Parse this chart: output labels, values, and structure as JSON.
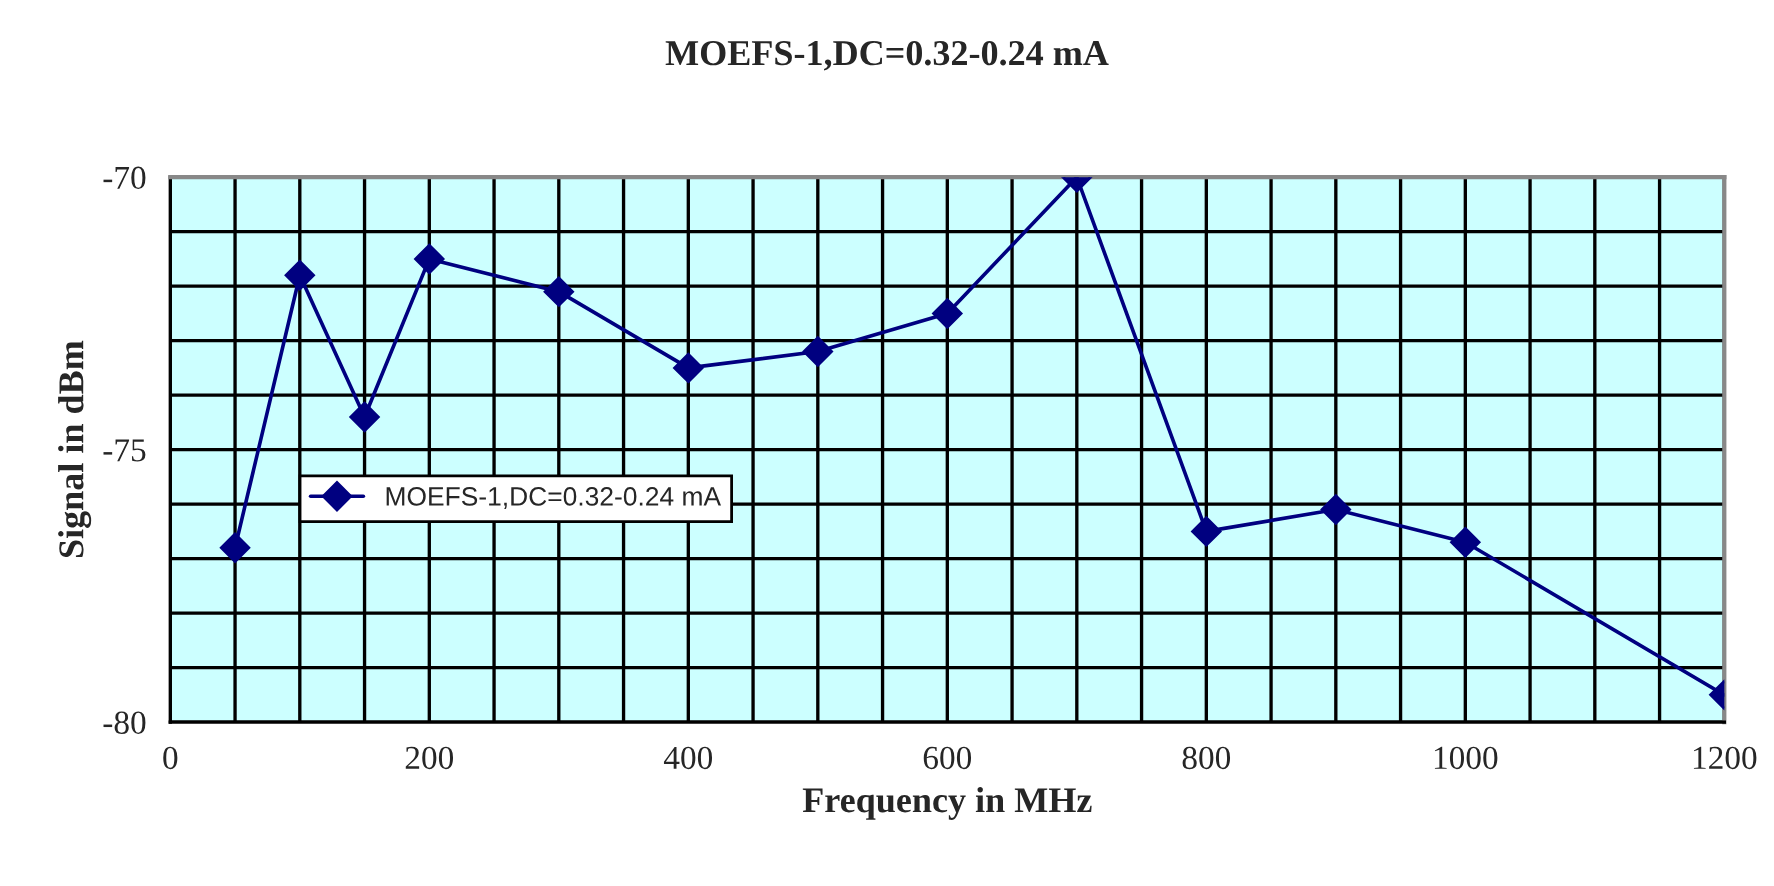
{
  "chart_data": {
    "type": "line",
    "title": "MOEFS-1,DC=0.32-0.24 mA",
    "xlabel": "Frequency in MHz",
    "ylabel": "Signal in dBm",
    "x": [
      50,
      100,
      150,
      200,
      300,
      400,
      500,
      600,
      700,
      800,
      900,
      1000,
      1200
    ],
    "series": [
      {
        "name": "MOEFS-1,DC=0.32-0.24 mA",
        "color": "#000080",
        "values": [
          -76.8,
          -71.8,
          -74.4,
          -71.5,
          -72.1,
          -73.5,
          -73.2,
          -72.5,
          -70.0,
          -76.5,
          -76.1,
          -76.7,
          -79.5
        ]
      }
    ],
    "xlim": [
      0,
      1200
    ],
    "ylim": [
      -80,
      -70
    ],
    "xticks": [
      0,
      {
        "value": 50,
        "label": null
      },
      {
        "value": 100,
        "label": null
      },
      {
        "value": 150,
        "label": null
      },
      200,
      {
        "value": 250,
        "label": null
      },
      {
        "value": 300,
        "label": null
      },
      {
        "value": 350,
        "label": null
      },
      400,
      {
        "value": 450,
        "label": null
      },
      {
        "value": 500,
        "label": null
      },
      {
        "value": 550,
        "label": null
      },
      600,
      {
        "value": 650,
        "label": null
      },
      {
        "value": 700,
        "label": null
      },
      {
        "value": 750,
        "label": null
      },
      800,
      {
        "value": 850,
        "label": null
      },
      {
        "value": 900,
        "label": null
      },
      {
        "value": 950,
        "label": null
      },
      1000,
      {
        "value": 1050,
        "label": null
      },
      {
        "value": 1100,
        "label": null
      },
      {
        "value": 1150,
        "label": null
      },
      1200
    ],
    "yticks": [
      -80,
      {
        "value": -79,
        "label": null
      },
      {
        "value": -78,
        "label": null
      },
      {
        "value": -77,
        "label": null
      },
      {
        "value": -76,
        "label": null
      },
      -75,
      {
        "value": -74,
        "label": null
      },
      {
        "value": -73,
        "label": null
      },
      {
        "value": -72,
        "label": null
      },
      {
        "value": -71,
        "label": null
      },
      -70
    ],
    "grid": true,
    "legend": "center left",
    "marker": "diamond",
    "line_style": "solid"
  }
}
